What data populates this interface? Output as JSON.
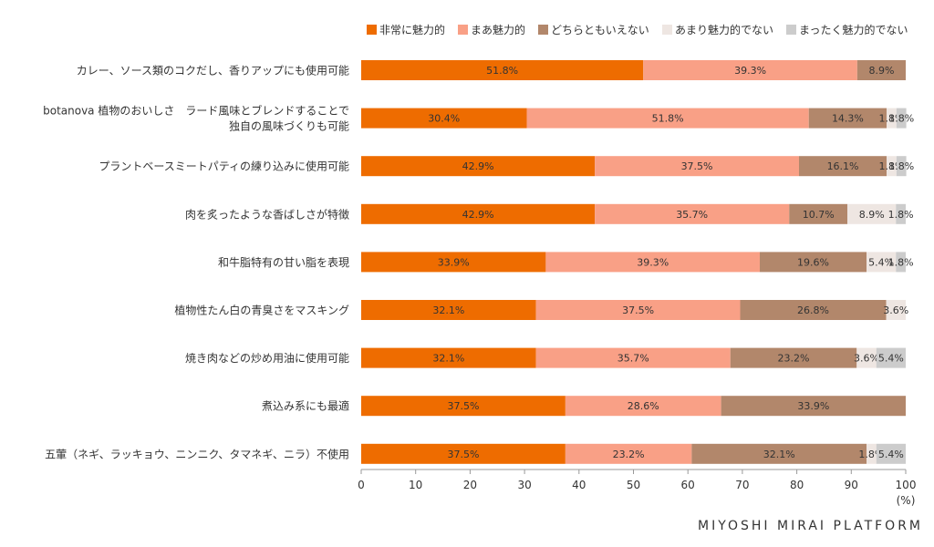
{
  "chart_data": {
    "type": "bar",
    "orientation": "horizontal",
    "stacked": true,
    "categories": [
      [
        "カレー、ソース類のコクだし、香りアップにも使用可能"
      ],
      [
        "botanova 植物のおいしさ　ラード風味とブレンドすることで",
        "独自の風味づくりも可能"
      ],
      [
        "プラントベースミートパティの練り込みに使用可能"
      ],
      [
        "肉を炙ったような香ばしさが特徴"
      ],
      [
        "和牛脂特有の甘い脂を表現"
      ],
      [
        "植物性たん白の青臭さをマスキング"
      ],
      [
        "焼き肉などの炒め用油に使用可能"
      ],
      [
        "煮込み系にも最適"
      ],
      [
        "五葷（ネギ、ラッキョウ、ニンニク、タマネギ、ニラ）不使用"
      ]
    ],
    "series": [
      {
        "name": "非常に魅力的",
        "color": "#EE6C00",
        "values": [
          51.8,
          30.4,
          42.9,
          42.9,
          33.9,
          32.1,
          32.1,
          37.5,
          37.5
        ]
      },
      {
        "name": "まあ魅力的",
        "color": "#F9A086",
        "values": [
          39.3,
          51.8,
          37.5,
          35.7,
          39.3,
          37.5,
          35.7,
          28.6,
          23.2
        ]
      },
      {
        "name": "どちらともいえない",
        "color": "#B2876B",
        "values": [
          8.9,
          14.3,
          16.1,
          10.7,
          19.6,
          26.8,
          23.2,
          33.9,
          32.1
        ]
      },
      {
        "name": "あまり魅力的でない",
        "color": "#EEE6E2",
        "values": [
          0,
          1.8,
          1.8,
          8.9,
          5.4,
          3.6,
          3.6,
          0,
          1.8
        ]
      },
      {
        "name": "まったく魅力的でない",
        "color": "#CCCCCC",
        "values": [
          0,
          1.8,
          1.8,
          1.8,
          1.8,
          0,
          5.4,
          0,
          5.4
        ]
      }
    ],
    "data_labels": [
      [
        "51.8%",
        "39.3%",
        "8.9%",
        "",
        ""
      ],
      [
        "30.4%",
        "51.8%",
        "14.3%",
        "1.8%",
        "1.8%"
      ],
      [
        "42.9%",
        "37.5%",
        "16.1%",
        "1.8%",
        "1.8%"
      ],
      [
        "42.9%",
        "35.7%",
        "10.7%",
        "8.9%",
        "1.8%"
      ],
      [
        "33.9%",
        "39.3%",
        "19.6%",
        "5.4%",
        "1.8%"
      ],
      [
        "32.1%",
        "37.5%",
        "26.8%",
        "3.6%",
        ""
      ],
      [
        "32.1%",
        "35.7%",
        "23.2%",
        "3.6%",
        "5.4%"
      ],
      [
        "37.5%",
        "28.6%",
        "33.9%",
        "",
        ""
      ],
      [
        "37.5%",
        "23.2%",
        "32.1%",
        "1.8%",
        "5.4%"
      ]
    ],
    "xlim": [
      0,
      100
    ],
    "x_ticks": [
      0,
      10,
      20,
      30,
      40,
      50,
      60,
      70,
      80,
      90,
      100
    ],
    "x_unit": "(%)",
    "legend_position": "top-right",
    "grid": false
  },
  "brand": "MIYOSHI MIRAI PLATFORM"
}
